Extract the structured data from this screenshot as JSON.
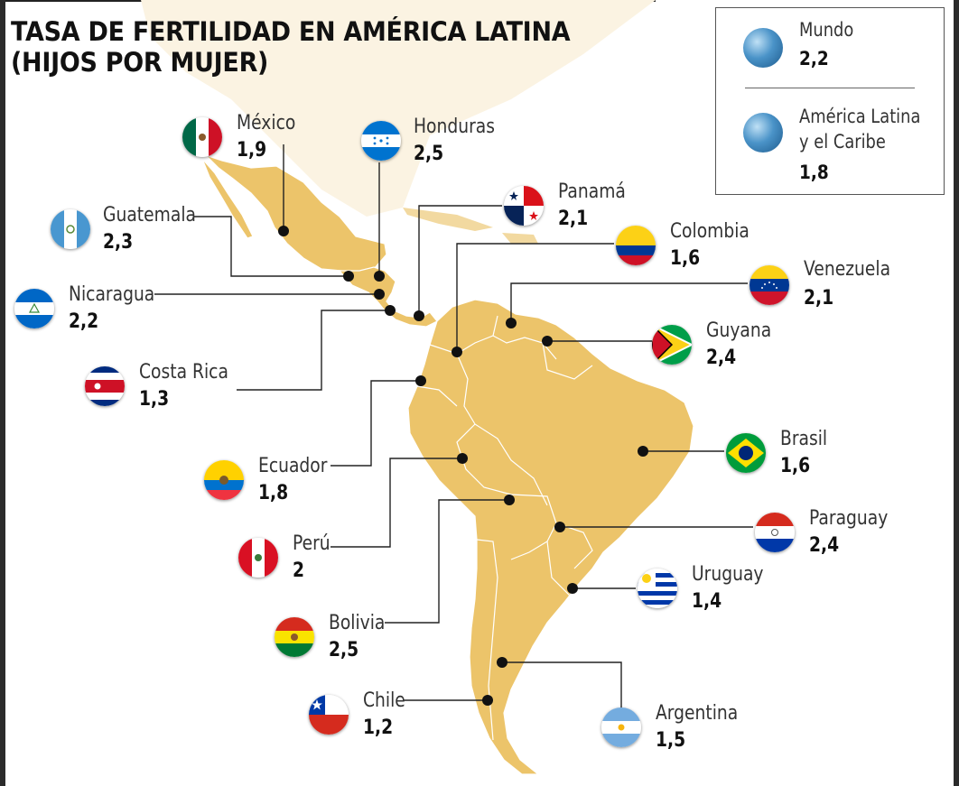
{
  "title_line1": "TASA DE FERTILIDAD EN AMÉRICA LATINA",
  "title_line2": "(HIJOS POR MUJER)",
  "legend": {
    "world_label": "Mundo",
    "world_value": "2,2",
    "region_label_line1": "América Latina",
    "region_label_line2": "y el Caribe",
    "region_value": "1,8"
  },
  "colors": {
    "land": "#ecc46a",
    "border": "#ffffff",
    "leader": "#222222",
    "dot": "#111111"
  },
  "countries": {
    "mexico": {
      "name": "México",
      "value": "1,9"
    },
    "honduras": {
      "name": "Honduras",
      "value": "2,5"
    },
    "guatemala": {
      "name": "Guatemala",
      "value": "2,3"
    },
    "panama": {
      "name": "Panamá",
      "value": "2,1"
    },
    "colombia": {
      "name": "Colombia",
      "value": "1,6"
    },
    "nicaragua": {
      "name": "Nicaragua",
      "value": "2,2"
    },
    "venezuela": {
      "name": "Venezuela",
      "value": "2,1"
    },
    "guyana": {
      "name": "Guyana",
      "value": "2,4"
    },
    "costa_rica": {
      "name": "Costa Rica",
      "value": "1,3"
    },
    "brasil": {
      "name": "Brasil",
      "value": "1,6"
    },
    "ecuador": {
      "name": "Ecuador",
      "value": "1,8"
    },
    "paraguay": {
      "name": "Paraguay",
      "value": "2,4"
    },
    "peru": {
      "name": "Perú",
      "value": "2"
    },
    "uruguay": {
      "name": "Uruguay",
      "value": "1,4"
    },
    "bolivia": {
      "name": "Bolivia",
      "value": "2,5"
    },
    "chile": {
      "name": "Chile",
      "value": "1,2"
    },
    "argentina": {
      "name": "Argentina",
      "value": "1,5"
    }
  }
}
